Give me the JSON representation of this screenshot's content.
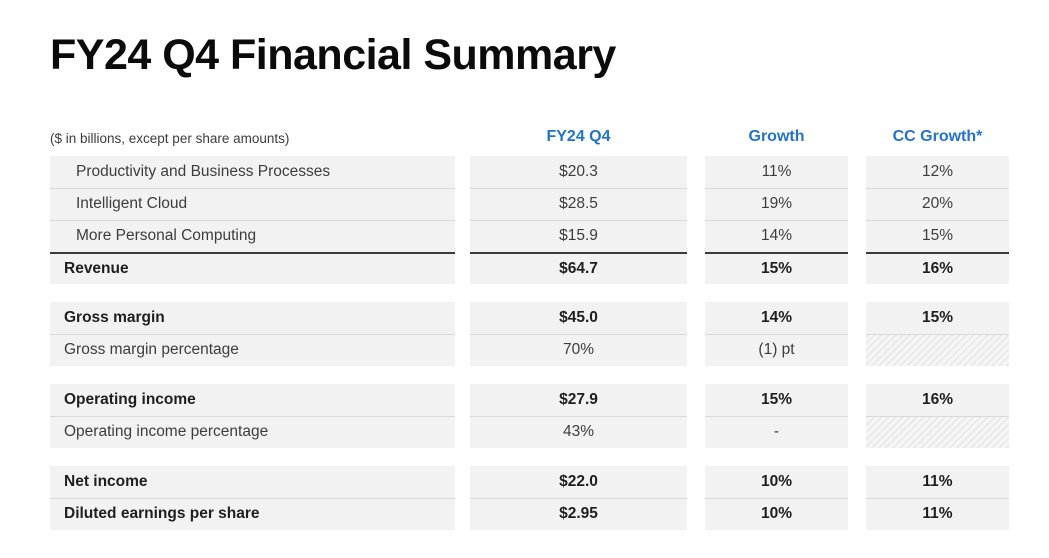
{
  "title": "FY24 Q4 Financial Summary",
  "table": {
    "note": "($ in billions, except per share amounts)",
    "columns": [
      "FY24 Q4",
      "Growth",
      "CC Growth*"
    ],
    "sections": [
      {
        "rows": [
          {
            "label": "Productivity and Business Processes",
            "indent": true,
            "bold": false,
            "total": false,
            "values": [
              "$20.3",
              "11%",
              "12%"
            ],
            "hatched": [
              false,
              false,
              false
            ]
          },
          {
            "label": "Intelligent Cloud",
            "indent": true,
            "bold": false,
            "total": false,
            "values": [
              "$28.5",
              "19%",
              "20%"
            ],
            "hatched": [
              false,
              false,
              false
            ]
          },
          {
            "label": "More Personal Computing",
            "indent": true,
            "bold": false,
            "total": false,
            "values": [
              "$15.9",
              "14%",
              "15%"
            ],
            "hatched": [
              false,
              false,
              false
            ]
          },
          {
            "label": "Revenue",
            "indent": false,
            "bold": true,
            "total": true,
            "values": [
              "$64.7",
              "15%",
              "16%"
            ],
            "hatched": [
              false,
              false,
              false
            ]
          }
        ]
      },
      {
        "rows": [
          {
            "label": "Gross margin",
            "indent": false,
            "bold": true,
            "total": false,
            "values": [
              "$45.0",
              "14%",
              "15%"
            ],
            "hatched": [
              false,
              false,
              false
            ]
          },
          {
            "label": "Gross margin percentage",
            "indent": false,
            "bold": false,
            "total": false,
            "values": [
              "70%",
              "(1) pt",
              ""
            ],
            "hatched": [
              false,
              false,
              true
            ]
          }
        ]
      },
      {
        "rows": [
          {
            "label": "Operating income",
            "indent": false,
            "bold": true,
            "total": false,
            "values": [
              "$27.9",
              "15%",
              "16%"
            ],
            "hatched": [
              false,
              false,
              false
            ]
          },
          {
            "label": "Operating income percentage",
            "indent": false,
            "bold": false,
            "total": false,
            "values": [
              "43%",
              "-",
              ""
            ],
            "hatched": [
              false,
              false,
              true
            ]
          }
        ]
      },
      {
        "rows": [
          {
            "label": "Net income",
            "indent": false,
            "bold": true,
            "total": false,
            "values": [
              "$22.0",
              "10%",
              "11%"
            ],
            "hatched": [
              false,
              false,
              false
            ]
          },
          {
            "label": "Diluted earnings per share",
            "indent": false,
            "bold": true,
            "total": false,
            "values": [
              "$2.95",
              "10%",
              "11%"
            ],
            "hatched": [
              false,
              false,
              false
            ]
          }
        ]
      }
    ]
  },
  "colors": {
    "header_blue": "#1F73D1",
    "row_background": "#F2F2F2",
    "row_separator": "#D9D9D9",
    "total_border": "#3A3A3A",
    "text": "#3D3D3D",
    "text_bold": "#1F1F1F"
  }
}
